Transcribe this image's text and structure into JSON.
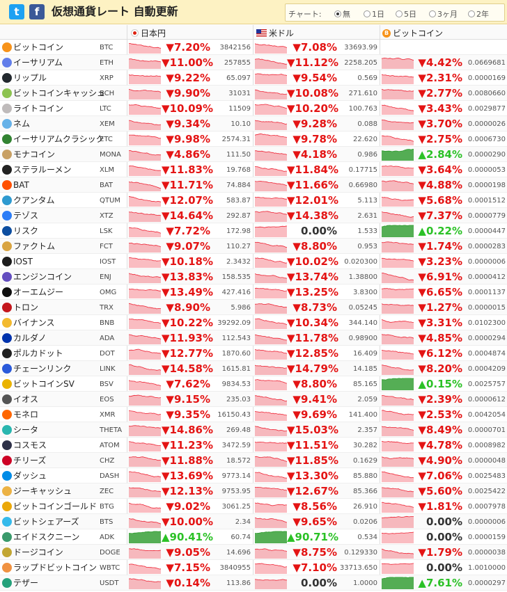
{
  "header": {
    "title": "仮想通貨レート 自動更新",
    "twitter_label": "t",
    "facebook_label": "f",
    "chart_label": "チャート:",
    "chart_options": [
      {
        "label": "無",
        "selected": true
      },
      {
        "label": "1日",
        "selected": false
      },
      {
        "label": "5日",
        "selected": false
      },
      {
        "label": "3ヶ月",
        "selected": false
      },
      {
        "label": "2年",
        "selected": false
      }
    ]
  },
  "columns": {
    "jpy": "日本円",
    "usd": "米ドル",
    "btc": "ビットコイン"
  },
  "colors": {
    "down": "#e41414",
    "up": "#2bc126",
    "header_bg": "#fdf2c3"
  },
  "coins": [
    {
      "name": "ビットコイン",
      "ticker": "BTC",
      "icon": "bitcoin-icon",
      "color": "#f7931a",
      "jpy_change": "▼7.20%",
      "jpy_price": "3842156",
      "usd_change": "▼7.08%",
      "usd_price": "33693.99",
      "btc_change": "",
      "btc_price": ""
    },
    {
      "name": "イーサリアム",
      "ticker": "ETH",
      "icon": "ethereum-icon",
      "color": "#627eea",
      "jpy_change": "▼11.00%",
      "jpy_price": "257855",
      "usd_change": "▼11.12%",
      "usd_price": "2258.205",
      "btc_change": "▼4.42%",
      "btc_price": "0.0669681"
    },
    {
      "name": "リップル",
      "ticker": "XRP",
      "icon": "ripple-icon",
      "color": "#23292f",
      "jpy_change": "▼9.22%",
      "jpy_price": "65.097",
      "usd_change": "▼9.54%",
      "usd_price": "0.569",
      "btc_change": "▼2.31%",
      "btc_price": "0.0000169"
    },
    {
      "name": "ビットコインキャッシュ",
      "ticker": "BCH",
      "icon": "bitcoin-cash-icon",
      "color": "#8dc351",
      "jpy_change": "▼9.90%",
      "jpy_price": "31031",
      "usd_change": "▼10.08%",
      "usd_price": "271.610",
      "btc_change": "▼2.77%",
      "btc_price": "0.0080660"
    },
    {
      "name": "ライトコイン",
      "ticker": "LTC",
      "icon": "litecoin-icon",
      "color": "#bfbbbb",
      "jpy_change": "▼10.09%",
      "jpy_price": "11509",
      "usd_change": "▼10.20%",
      "usd_price": "100.763",
      "btc_change": "▼3.43%",
      "btc_price": "0.0029877"
    },
    {
      "name": "ネム",
      "ticker": "XEM",
      "icon": "nem-icon",
      "color": "#67b2e8",
      "jpy_change": "▼9.34%",
      "jpy_price": "10.10",
      "usd_change": "▼9.28%",
      "usd_price": "0.088",
      "btc_change": "▼3.70%",
      "btc_price": "0.0000026"
    },
    {
      "name": "イーサリアムクラシック",
      "ticker": "ETC",
      "icon": "ethereum-classic-icon",
      "color": "#328332",
      "jpy_change": "▼9.98%",
      "jpy_price": "2574.31",
      "usd_change": "▼9.78%",
      "usd_price": "22.620",
      "btc_change": "▼2.75%",
      "btc_price": "0.0006730"
    },
    {
      "name": "モナコイン",
      "ticker": "MONA",
      "icon": "monacoin-icon",
      "color": "#c8a064",
      "jpy_change": "▼4.86%",
      "jpy_price": "111.50",
      "usd_change": "▼4.18%",
      "usd_price": "0.986",
      "btc_change": "▲2.84%",
      "btc_price": "0.0000290"
    },
    {
      "name": "ステラルーメン",
      "ticker": "XLM",
      "icon": "stellar-icon",
      "color": "#222222",
      "jpy_change": "▼11.83%",
      "jpy_price": "19.768",
      "usd_change": "▼11.84%",
      "usd_price": "0.17715",
      "btc_change": "▼3.64%",
      "btc_price": "0.0000053"
    },
    {
      "name": "BAT",
      "ticker": "BAT",
      "icon": "bat-icon",
      "color": "#ff5000",
      "jpy_change": "▼11.71%",
      "jpy_price": "74.884",
      "usd_change": "▼11.66%",
      "usd_price": "0.66980",
      "btc_change": "▼4.88%",
      "btc_price": "0.0000198"
    },
    {
      "name": "クアンタム",
      "ticker": "QTUM",
      "icon": "qtum-icon",
      "color": "#2e9ad0",
      "jpy_change": "▼12.07%",
      "jpy_price": "583.87",
      "usd_change": "▼12.01%",
      "usd_price": "5.113",
      "btc_change": "▼5.68%",
      "btc_price": "0.0001512"
    },
    {
      "name": "テゾス",
      "ticker": "XTZ",
      "icon": "tezos-icon",
      "color": "#2c7df7",
      "jpy_change": "▼14.64%",
      "jpy_price": "292.87",
      "usd_change": "▼14.38%",
      "usd_price": "2.631",
      "btc_change": "▼7.37%",
      "btc_price": "0.0000779"
    },
    {
      "name": "リスク",
      "ticker": "LSK",
      "icon": "lisk-icon",
      "color": "#0d4ea0",
      "jpy_change": "▼7.72%",
      "jpy_price": "172.98",
      "usd_change": "0.00%",
      "usd_price": "1.533",
      "btc_change": "▲0.22%",
      "btc_price": "0.0000447"
    },
    {
      "name": "ファクトム",
      "ticker": "FCT",
      "icon": "factom-icon",
      "color": "#d9a441",
      "jpy_change": "▼9.07%",
      "jpy_price": "110.27",
      "usd_change": "▼8.80%",
      "usd_price": "0.953",
      "btc_change": "▼1.74%",
      "btc_price": "0.0000283"
    },
    {
      "name": "IOST",
      "ticker": "IOST",
      "icon": "iost-icon",
      "color": "#1c1c1c",
      "jpy_change": "▼10.18%",
      "jpy_price": "2.3432",
      "usd_change": "▼10.02%",
      "usd_price": "0.020300",
      "btc_change": "▼3.23%",
      "btc_price": "0.0000006"
    },
    {
      "name": "エンジンコイン",
      "ticker": "ENJ",
      "icon": "enjin-icon",
      "color": "#624dbf",
      "jpy_change": "▼13.83%",
      "jpy_price": "158.535",
      "usd_change": "▼13.74%",
      "usd_price": "1.38800",
      "btc_change": "▼6.91%",
      "btc_price": "0.0000412"
    },
    {
      "name": "オーエムジー",
      "ticker": "OMG",
      "icon": "omg-icon",
      "color": "#101010",
      "jpy_change": "▼13.49%",
      "jpy_price": "427.416",
      "usd_change": "▼13.25%",
      "usd_price": "3.8300",
      "btc_change": "▼6.65%",
      "btc_price": "0.0001137"
    },
    {
      "name": "トロン",
      "ticker": "TRX",
      "icon": "tron-icon",
      "color": "#c4161c",
      "jpy_change": "▼8.90%",
      "jpy_price": "5.986",
      "usd_change": "▼8.73%",
      "usd_price": "0.05245",
      "btc_change": "▼1.27%",
      "btc_price": "0.0000015"
    },
    {
      "name": "バイナンス",
      "ticker": "BNB",
      "icon": "binance-icon",
      "color": "#f3ba2f",
      "jpy_change": "▼10.22%",
      "jpy_price": "39292.09",
      "usd_change": "▼10.34%",
      "usd_price": "344.140",
      "btc_change": "▼3.31%",
      "btc_price": "0.0102300"
    },
    {
      "name": "カルダノ",
      "ticker": "ADA",
      "icon": "cardano-icon",
      "color": "#0033ad",
      "jpy_change": "▼11.93%",
      "jpy_price": "112.543",
      "usd_change": "▼11.78%",
      "usd_price": "0.98900",
      "btc_change": "▼4.85%",
      "btc_price": "0.0000294"
    },
    {
      "name": "ポルカドット",
      "ticker": "DOT",
      "icon": "polkadot-icon",
      "color": "#222222",
      "jpy_change": "▼12.77%",
      "jpy_price": "1870.60",
      "usd_change": "▼12.85%",
      "usd_price": "16.409",
      "btc_change": "▼6.12%",
      "btc_price": "0.0004874"
    },
    {
      "name": "チェーンリンク",
      "ticker": "LINK",
      "icon": "chainlink-icon",
      "color": "#2a5ada",
      "jpy_change": "▼14.58%",
      "jpy_price": "1615.81",
      "usd_change": "▼14.79%",
      "usd_price": "14.185",
      "btc_change": "▼8.20%",
      "btc_price": "0.0004209"
    },
    {
      "name": "ビットコインSV",
      "ticker": "BSV",
      "icon": "bitcoin-sv-icon",
      "color": "#eab300",
      "jpy_change": "▼7.62%",
      "jpy_price": "9834.53",
      "usd_change": "▼8.80%",
      "usd_price": "85.165",
      "btc_change": "▲0.15%",
      "btc_price": "0.0025757"
    },
    {
      "name": "イオス",
      "ticker": "EOS",
      "icon": "eos-icon",
      "color": "#555555",
      "jpy_change": "▼9.15%",
      "jpy_price": "235.03",
      "usd_change": "▼9.41%",
      "usd_price": "2.059",
      "btc_change": "▼2.39%",
      "btc_price": "0.0000612"
    },
    {
      "name": "モネロ",
      "ticker": "XMR",
      "icon": "monero-icon",
      "color": "#ff6600",
      "jpy_change": "▼9.35%",
      "jpy_price": "16150.43",
      "usd_change": "▼9.69%",
      "usd_price": "141.400",
      "btc_change": "▼2.53%",
      "btc_price": "0.0042054"
    },
    {
      "name": "シータ",
      "ticker": "THETA",
      "icon": "theta-icon",
      "color": "#29b6af",
      "jpy_change": "▼14.86%",
      "jpy_price": "269.48",
      "usd_change": "▼15.03%",
      "usd_price": "2.357",
      "btc_change": "▼8.49%",
      "btc_price": "0.0000701"
    },
    {
      "name": "コスモス",
      "ticker": "ATOM",
      "icon": "cosmos-icon",
      "color": "#2e3148",
      "jpy_change": "▼11.23%",
      "jpy_price": "3472.59",
      "usd_change": "▼11.51%",
      "usd_price": "30.282",
      "btc_change": "▼4.78%",
      "btc_price": "0.0008982"
    },
    {
      "name": "チリーズ",
      "ticker": "CHZ",
      "icon": "chiliz-icon",
      "color": "#cd0124",
      "jpy_change": "▼11.88%",
      "jpy_price": "18.572",
      "usd_change": "▼11.85%",
      "usd_price": "0.1629",
      "btc_change": "▼4.90%",
      "btc_price": "0.0000048"
    },
    {
      "name": "ダッシュ",
      "ticker": "DASH",
      "icon": "dash-icon",
      "color": "#008ce7",
      "jpy_change": "▼13.69%",
      "jpy_price": "9773.14",
      "usd_change": "▼13.30%",
      "usd_price": "85.880",
      "btc_change": "▼7.06%",
      "btc_price": "0.0025483"
    },
    {
      "name": "ジーキャッシュ",
      "ticker": "ZEC",
      "icon": "zcash-icon",
      "color": "#ecb244",
      "jpy_change": "▼12.13%",
      "jpy_price": "9753.95",
      "usd_change": "▼12.67%",
      "usd_price": "85.366",
      "btc_change": "▼5.60%",
      "btc_price": "0.0025422"
    },
    {
      "name": "ビットコインゴールド",
      "ticker": "BTG",
      "icon": "bitcoin-gold-icon",
      "color": "#eba809",
      "jpy_change": "▼9.02%",
      "jpy_price": "3061.25",
      "usd_change": "▼8.56%",
      "usd_price": "26.910",
      "btc_change": "▼1.81%",
      "btc_price": "0.0007978"
    },
    {
      "name": "ビットシェアーズ",
      "ticker": "BTS",
      "icon": "bitshares-icon",
      "color": "#35baeb",
      "jpy_change": "▼10.00%",
      "jpy_price": "2.34",
      "usd_change": "▼9.65%",
      "usd_price": "0.0206",
      "btc_change": "0.00%",
      "btc_price": "0.0000006"
    },
    {
      "name": "エイドスクニーン",
      "ticker": "ADK",
      "icon": "aidos-kuneen-icon",
      "color": "#3a9a6c",
      "jpy_change": "▲90.41%",
      "jpy_price": "60.74",
      "usd_change": "▲90.71%",
      "usd_price": "0.534",
      "btc_change": "0.00%",
      "btc_price": "0.0000159"
    },
    {
      "name": "ドージコイン",
      "ticker": "DOGE",
      "icon": "dogecoin-icon",
      "color": "#c2a633",
      "jpy_change": "▼9.05%",
      "jpy_price": "14.696",
      "usd_change": "▼8.75%",
      "usd_price": "0.129330",
      "btc_change": "▼1.79%",
      "btc_price": "0.0000038"
    },
    {
      "name": "ラップドビットコイン",
      "ticker": "WBTC",
      "icon": "wrapped-bitcoin-icon",
      "color": "#f09242",
      "jpy_change": "▼7.15%",
      "jpy_price": "3840955",
      "usd_change": "▼7.10%",
      "usd_price": "33713.650",
      "btc_change": "0.00%",
      "btc_price": "1.0010000"
    },
    {
      "name": "テザー",
      "ticker": "USDT",
      "icon": "tether-icon",
      "color": "#26a17b",
      "jpy_change": "▼0.14%",
      "jpy_price": "113.86",
      "usd_change": "0.00%",
      "usd_price": "1.0000",
      "btc_change": "▲7.61%",
      "btc_price": "0.0000297"
    }
  ]
}
